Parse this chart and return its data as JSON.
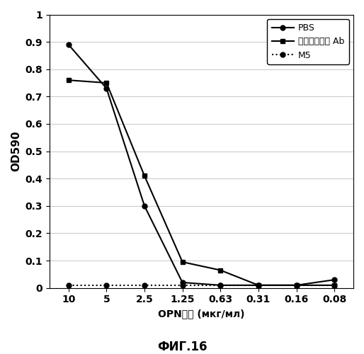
{
  "x_labels": [
    "10",
    "5",
    "2.5",
    "1.25",
    "0.63",
    "0.31",
    "0.16",
    "0.08"
  ],
  "x_values": [
    0,
    1,
    2,
    3,
    4,
    5,
    6,
    7
  ],
  "pbs_values": [
    0.89,
    0.73,
    0.3,
    0.02,
    0.01,
    0.01,
    0.01,
    0.03
  ],
  "control_ab_values": [
    0.76,
    0.75,
    0.41,
    0.095,
    0.065,
    0.01,
    0.01,
    0.01
  ],
  "m5_values": [
    0.01,
    0.01,
    0.01,
    0.01,
    0.01,
    0.01,
    0.01,
    0.01
  ],
  "ylabel": "OD590",
  "xlabel_part1": "OPN濃度",
  "xlabel_part2": " (мкг/мл)",
  "title": "ФИГ.16",
  "ylim": [
    0,
    1.0
  ],
  "yticks": [
    0,
    0.1,
    0.2,
    0.3,
    0.4,
    0.5,
    0.6,
    0.7,
    0.8,
    0.9,
    1
  ],
  "ytick_labels": [
    "0",
    "0.1",
    "0.2",
    "0.3",
    "0.4",
    "0.5",
    "0.6",
    "0.7",
    "0.8",
    "0.9",
    "1"
  ],
  "legend_pbs": "PBS",
  "legend_control": "コントロール Ab",
  "legend_m5": "M5",
  "line_color": "#000000",
  "bg_color": "#ffffff",
  "grid_color": "#cccccc",
  "marker_size": 5,
  "line_width": 1.5
}
